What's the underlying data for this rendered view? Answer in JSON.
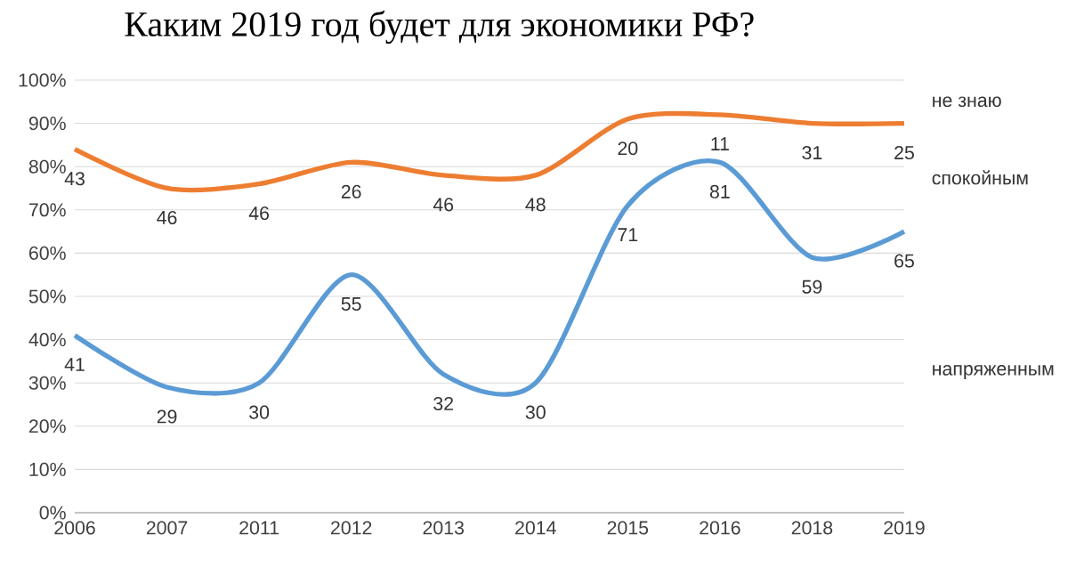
{
  "chart_data": {
    "type": "line",
    "title": "Каким 2019 год будет для экономики РФ?",
    "categories": [
      "2006",
      "2007",
      "2011",
      "2012",
      "2013",
      "2014",
      "2015",
      "2016",
      "2018",
      "2019"
    ],
    "series": [
      {
        "name": "напряженным",
        "color": "#5b9bd5",
        "values": [
          41,
          29,
          30,
          55,
          32,
          30,
          71,
          81,
          59,
          65
        ],
        "value_labels": [
          "41",
          "29",
          "30",
          "55",
          "32",
          "30",
          "71",
          "81",
          "59",
          "65"
        ]
      },
      {
        "name": "спокойным",
        "color": "#ed7d31",
        "values": [
          84,
          75,
          76,
          81,
          78,
          78,
          91,
          92,
          90,
          90
        ]
      }
    ],
    "annotations": [
      "не знаю",
      {
        "text": "43",
        "x": "2006",
        "y": 84
      },
      {
        "text": "46",
        "x": "2007",
        "y": 75
      },
      {
        "text": "46",
        "x": "2011",
        "y": 76
      },
      {
        "text": "26",
        "x": "2012",
        "y": 81
      },
      {
        "text": "46",
        "x": "2013",
        "y": 78
      },
      {
        "text": "48",
        "x": "2014",
        "y": 78
      },
      {
        "text": "20",
        "x": "2015",
        "y": 91
      },
      {
        "text": "11",
        "x": "2016",
        "y": 92
      },
      {
        "text": "31",
        "x": "2018",
        "y": 90
      },
      {
        "text": "25",
        "x": "2019",
        "y": 90
      }
    ],
    "ylim": [
      0,
      100
    ],
    "yticks": [
      {
        "value": 0,
        "label": "0%"
      },
      {
        "value": 10,
        "label": "10%"
      },
      {
        "value": 20,
        "label": "20%"
      },
      {
        "value": 30,
        "label": "30%"
      },
      {
        "value": 40,
        "label": "40%"
      },
      {
        "value": 50,
        "label": "50%"
      },
      {
        "value": 60,
        "label": "60%"
      },
      {
        "value": 70,
        "label": "70%"
      },
      {
        "value": 80,
        "label": "80%"
      },
      {
        "value": 90,
        "label": "90%"
      },
      {
        "value": 100,
        "label": "100%"
      }
    ],
    "grid": "y",
    "marker": "none",
    "line_style": "solid"
  }
}
